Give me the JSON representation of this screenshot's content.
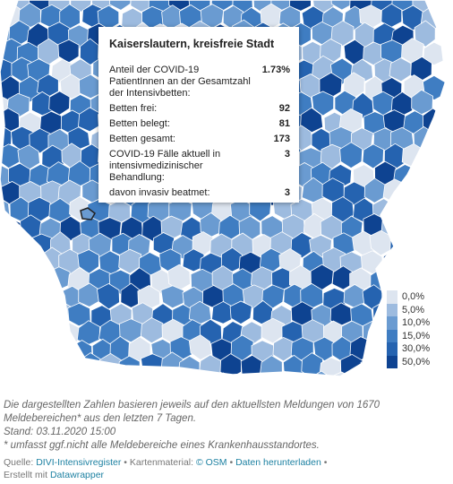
{
  "tooltip": {
    "title": "Kaiserslautern, kreisfreie Stadt",
    "rows": [
      {
        "label": "Anteil der COVID-19 PatientInnen an der Gesamtzahl der Intensivbetten:",
        "value": "1.73%"
      },
      {
        "label": "Betten frei:",
        "value": "92"
      },
      {
        "label": "Betten belegt:",
        "value": "81"
      },
      {
        "label": "Betten gesamt:",
        "value": "173"
      },
      {
        "label": "COVID-19 Fälle aktuell in intensivmedizinischer Behandlung:",
        "value": "3"
      },
      {
        "label": "davon invasiv beatmet:",
        "value": "3"
      }
    ]
  },
  "legend": {
    "items": [
      {
        "label": "0,0%",
        "color": "#dde5f0"
      },
      {
        "label": "5,0%",
        "color": "#9dbbdf"
      },
      {
        "label": "10,0%",
        "color": "#6a9bd1"
      },
      {
        "label": "15,0%",
        "color": "#3f7dc2"
      },
      {
        "label": "30,0%",
        "color": "#2563b0"
      },
      {
        "label": "50,0%",
        "color": "#0e4391"
      }
    ]
  },
  "notes": [
    "Die dargestellten Zahlen basieren jeweils auf den aktuellsten Meldungen von 1670",
    "Meldebereichen* aus den letzten 7 Tagen.",
    "Stand: 03.11.2020 15:00",
    "* umfasst ggf.nicht alle Meldebereiche eines Krankenhausstandortes."
  ],
  "footer": {
    "source_label": "Quelle:",
    "source": "DIVI-Intensivregister",
    "separator": "•",
    "map_label": "Kartenmaterial:",
    "osm": "© OSM",
    "download": "Daten herunterladen",
    "created_label": "Erstellt mit",
    "created": "Datawrapper"
  }
}
